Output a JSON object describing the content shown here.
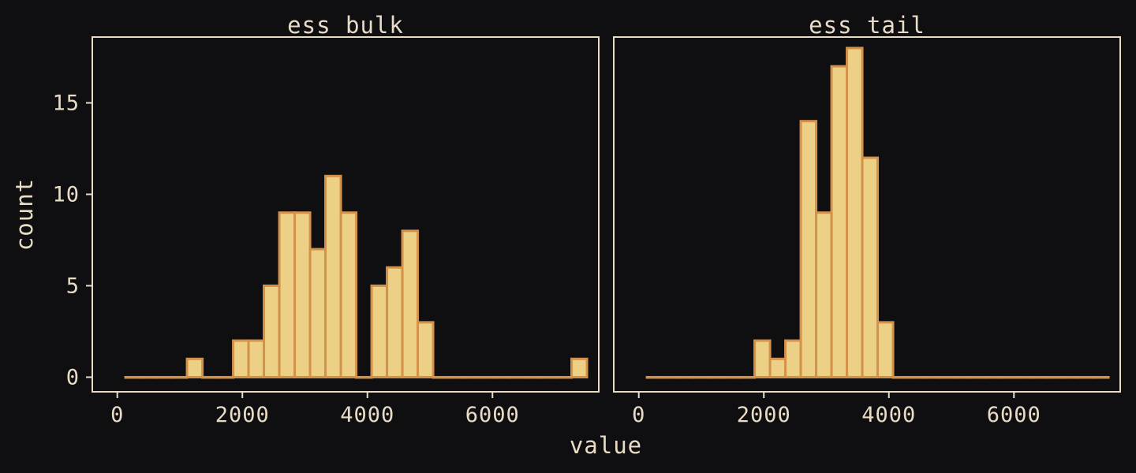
{
  "chart_data": {
    "type": "bar",
    "subtype": "faceted-histogram",
    "xlabel": "value",
    "ylabel": "count",
    "xlim": [
      -400,
      7700
    ],
    "ylim": [
      -0.8,
      18.6
    ],
    "x_ticks": [
      0,
      2000,
      4000,
      6000
    ],
    "x_tick_labels": [
      "0",
      "2000",
      "4000",
      "6000"
    ],
    "y_ticks": [
      0,
      5,
      10,
      15
    ],
    "y_tick_labels": [
      "0",
      "5",
      "10",
      "15"
    ],
    "bins": [
      [
        131,
        377
      ],
      [
        377,
        623
      ],
      [
        623,
        869
      ],
      [
        869,
        1115
      ],
      [
        1115,
        1361
      ],
      [
        1361,
        1607
      ],
      [
        1607,
        1853
      ],
      [
        1853,
        2099
      ],
      [
        2099,
        2345
      ],
      [
        2345,
        2591
      ],
      [
        2591,
        2837
      ],
      [
        2837,
        3083
      ],
      [
        3083,
        3329
      ],
      [
        3329,
        3575
      ],
      [
        3575,
        3821
      ],
      [
        3821,
        4067
      ],
      [
        4067,
        4313
      ],
      [
        4313,
        4559
      ],
      [
        4559,
        4805
      ],
      [
        4805,
        5051
      ],
      [
        5051,
        5297
      ],
      [
        5297,
        5543
      ],
      [
        5543,
        5789
      ],
      [
        5789,
        6035
      ],
      [
        6035,
        6281
      ],
      [
        6281,
        6527
      ],
      [
        6527,
        6773
      ],
      [
        6773,
        7019
      ],
      [
        7019,
        7265
      ],
      [
        7265,
        7511
      ]
    ],
    "panels": [
      {
        "title": "ess bulk",
        "counts": [
          0,
          0,
          0,
          0,
          1,
          0,
          0,
          2,
          2,
          5,
          9,
          9,
          7,
          11,
          9,
          0,
          5,
          6,
          8,
          3,
          0,
          0,
          0,
          0,
          0,
          0,
          0,
          0,
          0,
          1
        ]
      },
      {
        "title": "ess tail",
        "counts": [
          0,
          0,
          0,
          0,
          0,
          0,
          0,
          2,
          1,
          2,
          14,
          9,
          17,
          18,
          12,
          3,
          0,
          0,
          0,
          0,
          0,
          0,
          0,
          0,
          0,
          0,
          0,
          0,
          0,
          0
        ]
      }
    ],
    "grid": false,
    "colors": {
      "background": "#0f0f11",
      "bar_fill": "#ecd086",
      "bar_outline": "#d4914a",
      "text": "#e9dcc6"
    }
  }
}
